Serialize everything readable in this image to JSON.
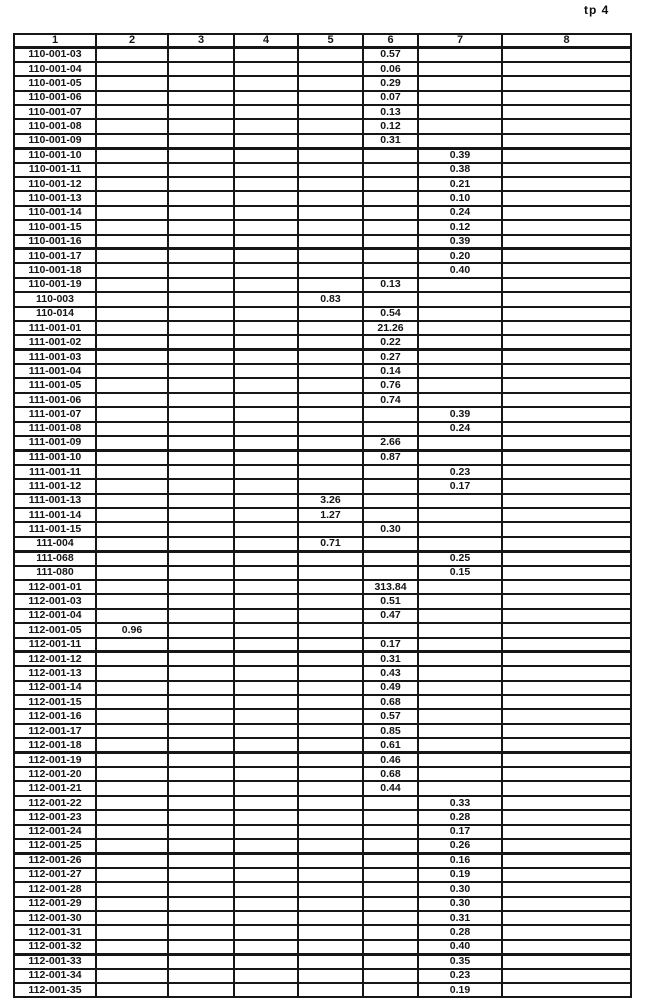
{
  "page": {
    "annotation": "tp 4"
  },
  "table": {
    "columns": [
      "1",
      "2",
      "3",
      "4",
      "5",
      "6",
      "7",
      "8"
    ],
    "rows": [
      {
        "id": "110-001-03",
        "col": 6,
        "value": "0.57"
      },
      {
        "id": "110-001-04",
        "col": 6,
        "value": "0.06"
      },
      {
        "id": "110-001-05",
        "col": 6,
        "value": "0.29"
      },
      {
        "id": "110-001-06",
        "col": 6,
        "value": "0.07"
      },
      {
        "id": "110-001-07",
        "col": 6,
        "value": "0.13"
      },
      {
        "id": "110-001-08",
        "col": 6,
        "value": "0.12"
      },
      {
        "id": "110-001-09",
        "col": 6,
        "value": "0.31"
      },
      {
        "id": "110-001-10",
        "col": 7,
        "value": "0.39"
      },
      {
        "id": "110-001-11",
        "col": 7,
        "value": "0.38"
      },
      {
        "id": "110-001-12",
        "col": 7,
        "value": "0.21"
      },
      {
        "id": "110-001-13",
        "col": 7,
        "value": "0.10"
      },
      {
        "id": "110-001-14",
        "col": 7,
        "value": "0.24"
      },
      {
        "id": "110-001-15",
        "col": 7,
        "value": "0.12"
      },
      {
        "id": "110-001-16",
        "col": 7,
        "value": "0.39"
      },
      {
        "id": "110-001-17",
        "col": 7,
        "value": "0.20"
      },
      {
        "id": "110-001-18",
        "col": 7,
        "value": "0.40"
      },
      {
        "id": "110-001-19",
        "col": 6,
        "value": "0.13"
      },
      {
        "id": "110-003",
        "col": 5,
        "value": "0.83"
      },
      {
        "id": "110-014",
        "col": 6,
        "value": "0.54"
      },
      {
        "id": "111-001-01",
        "col": 6,
        "value": "21.26"
      },
      {
        "id": "111-001-02",
        "col": 6,
        "value": "0.22"
      },
      {
        "id": "111-001-03",
        "col": 6,
        "value": "0.27"
      },
      {
        "id": "111-001-04",
        "col": 6,
        "value": "0.14"
      },
      {
        "id": "111-001-05",
        "col": 6,
        "value": "0.76"
      },
      {
        "id": "111-001-06",
        "col": 6,
        "value": "0.74"
      },
      {
        "id": "111-001-07",
        "col": 7,
        "value": "0.39"
      },
      {
        "id": "111-001-08",
        "col": 7,
        "value": "0.24"
      },
      {
        "id": "111-001-09",
        "col": 6,
        "value": "2.66"
      },
      {
        "id": "111-001-10",
        "col": 6,
        "value": "0.87"
      },
      {
        "id": "111-001-11",
        "col": 7,
        "value": "0.23"
      },
      {
        "id": "111-001-12",
        "col": 7,
        "value": "0.17"
      },
      {
        "id": "111-001-13",
        "col": 5,
        "value": "3.26"
      },
      {
        "id": "111-001-14",
        "col": 5,
        "value": "1.27"
      },
      {
        "id": "111-001-15",
        "col": 6,
        "value": "0.30"
      },
      {
        "id": "111-004",
        "col": 5,
        "value": "0.71"
      },
      {
        "id": "111-068",
        "col": 7,
        "value": "0.25"
      },
      {
        "id": "111-080",
        "col": 7,
        "value": "0.15"
      },
      {
        "id": "112-001-01",
        "col": 6,
        "value": "313.84"
      },
      {
        "id": "112-001-03",
        "col": 6,
        "value": "0.51"
      },
      {
        "id": "112-001-04",
        "col": 6,
        "value": "0.47"
      },
      {
        "id": "112-001-05",
        "col": 2,
        "value": "0.96"
      },
      {
        "id": "112-001-11",
        "col": 6,
        "value": "0.17"
      },
      {
        "id": "112-001-12",
        "col": 6,
        "value": "0.31"
      },
      {
        "id": "112-001-13",
        "col": 6,
        "value": "0.43"
      },
      {
        "id": "112-001-14",
        "col": 6,
        "value": "0.49"
      },
      {
        "id": "112-001-15",
        "col": 6,
        "value": "0.68"
      },
      {
        "id": "112-001-16",
        "col": 6,
        "value": "0.57"
      },
      {
        "id": "112-001-17",
        "col": 6,
        "value": "0.85"
      },
      {
        "id": "112-001-18",
        "col": 6,
        "value": "0.61"
      },
      {
        "id": "112-001-19",
        "col": 6,
        "value": "0.46"
      },
      {
        "id": "112-001-20",
        "col": 6,
        "value": "0.68"
      },
      {
        "id": "112-001-21",
        "col": 6,
        "value": "0.44"
      },
      {
        "id": "112-001-22",
        "col": 7,
        "value": "0.33"
      },
      {
        "id": "112-001-23",
        "col": 7,
        "value": "0.28"
      },
      {
        "id": "112-001-24",
        "col": 7,
        "value": "0.17"
      },
      {
        "id": "112-001-25",
        "col": 7,
        "value": "0.26"
      },
      {
        "id": "112-001-26",
        "col": 7,
        "value": "0.16"
      },
      {
        "id": "112-001-27",
        "col": 7,
        "value": "0.19"
      },
      {
        "id": "112-001-28",
        "col": 7,
        "value": "0.30"
      },
      {
        "id": "112-001-29",
        "col": 7,
        "value": "0.30"
      },
      {
        "id": "112-001-30",
        "col": 7,
        "value": "0.31"
      },
      {
        "id": "112-001-31",
        "col": 7,
        "value": "0.28"
      },
      {
        "id": "112-001-32",
        "col": 7,
        "value": "0.40"
      },
      {
        "id": "112-001-33",
        "col": 7,
        "value": "0.35"
      },
      {
        "id": "112-001-34",
        "col": 7,
        "value": "0.23"
      },
      {
        "id": "112-001-35",
        "col": 7,
        "value": "0.19"
      }
    ]
  }
}
